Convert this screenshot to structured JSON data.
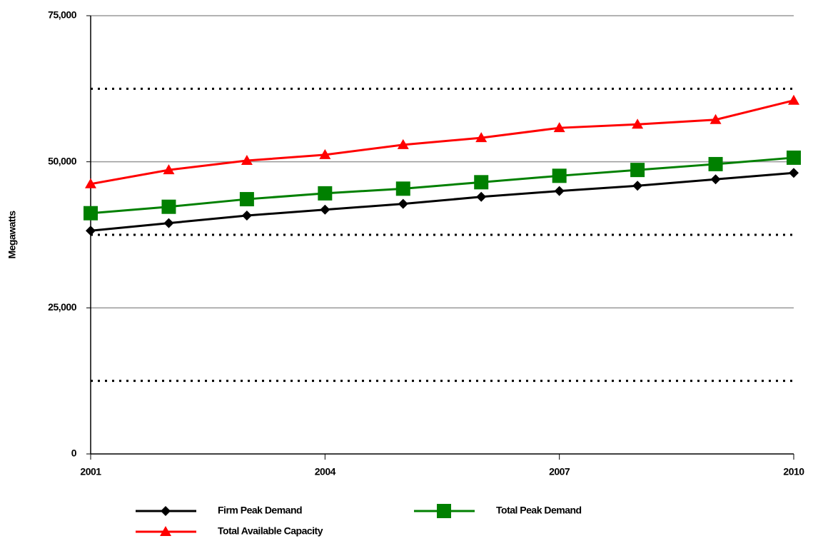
{
  "chart_data": {
    "type": "line",
    "y_label": "Megawatts",
    "x": [
      2001,
      2002,
      2003,
      2004,
      2005,
      2006,
      2007,
      2008,
      2009,
      2010
    ],
    "xlim": [
      2001,
      2010
    ],
    "xticks": [
      2001,
      2004,
      2007,
      2010
    ],
    "ylim": [
      0,
      75000
    ],
    "yticks": [
      {
        "value": 0,
        "label": "0"
      },
      {
        "value": 25000,
        "label": "25,000"
      },
      {
        "value": 50000,
        "label": "50,000"
      },
      {
        "value": 75000,
        "label": "75,000"
      }
    ],
    "minor_yticks": [
      12500,
      37500,
      62500
    ],
    "grid": true,
    "legend": "bottom",
    "series": [
      {
        "name": "Firm Peak Demand",
        "color": "#000000",
        "marker": "diamond",
        "values": [
          38200,
          39500,
          40800,
          41800,
          42800,
          44000,
          45000,
          45900,
          47000,
          48100
        ]
      },
      {
        "name": "Total Peak Demand",
        "color": "#008000",
        "marker": "square",
        "values": [
          41200,
          42300,
          43600,
          44600,
          45400,
          46500,
          47600,
          48600,
          49600,
          50700
        ]
      },
      {
        "name": "Total Available Capacity",
        "color": "#ff0000",
        "marker": "triangle",
        "values": [
          46200,
          48600,
          50200,
          51200,
          52900,
          54100,
          55800,
          56400,
          57200,
          60500
        ]
      }
    ]
  }
}
